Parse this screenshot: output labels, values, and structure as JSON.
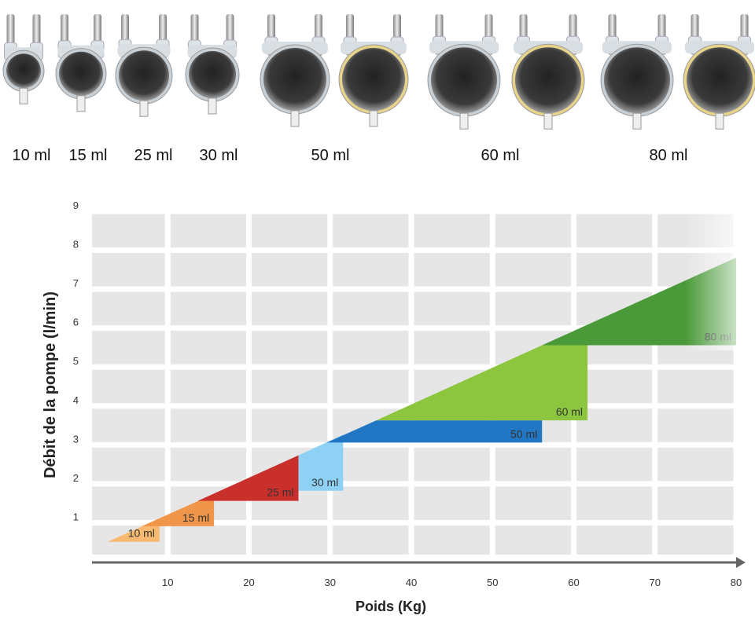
{
  "chart_data": {
    "type": "area-regions",
    "xlabel": "Poids (Kg)",
    "ylabel": "Débit de la pompe (l/min)",
    "xlim": [
      0,
      80
    ],
    "ylim": [
      0,
      9
    ],
    "xticks": [
      10,
      20,
      30,
      40,
      50,
      60,
      70,
      80
    ],
    "yticks": [
      1,
      2,
      3,
      4,
      5,
      6,
      7,
      8,
      9
    ],
    "grid": true,
    "series": [
      {
        "name": "10 ml",
        "color": "#f8b971",
        "points": [
          [
            2.6,
            0.45
          ],
          [
            9,
            0.45
          ],
          [
            9,
            1.05
          ]
        ]
      },
      {
        "name": "15 ml",
        "color": "#f0964a",
        "points": [
          [
            6.8,
            0.85
          ],
          [
            15.7,
            0.85
          ],
          [
            15.7,
            1.68
          ]
        ]
      },
      {
        "name": "25 ml",
        "color": "#c9302c",
        "points": [
          [
            13.7,
            1.5
          ],
          [
            26.1,
            1.5
          ],
          [
            26.1,
            2.67
          ]
        ]
      },
      {
        "name": "30 ml",
        "color": "#8fd0f5",
        "points": [
          [
            26.1,
            1.76
          ],
          [
            31.6,
            1.76
          ],
          [
            31.6,
            3.2
          ],
          [
            26.1,
            2.67
          ]
        ]
      },
      {
        "name": "50 ml",
        "color": "#2277c4",
        "points": [
          [
            29.6,
            3.0
          ],
          [
            56.1,
            3.0
          ],
          [
            56.1,
            3.57
          ],
          [
            35.7,
            3.57
          ]
        ]
      },
      {
        "name": "60 ml",
        "color": "#8cc63f",
        "points": [
          [
            35.7,
            3.57
          ],
          [
            61.7,
            3.57
          ],
          [
            61.7,
            5.5
          ],
          [
            56.1,
            5.5
          ]
        ]
      },
      {
        "name": "80 ml",
        "color": "#4a9a3a",
        "points": [
          [
            56.1,
            5.5
          ],
          [
            80,
            5.5
          ],
          [
            80,
            7.75
          ]
        ]
      }
    ]
  }
}
